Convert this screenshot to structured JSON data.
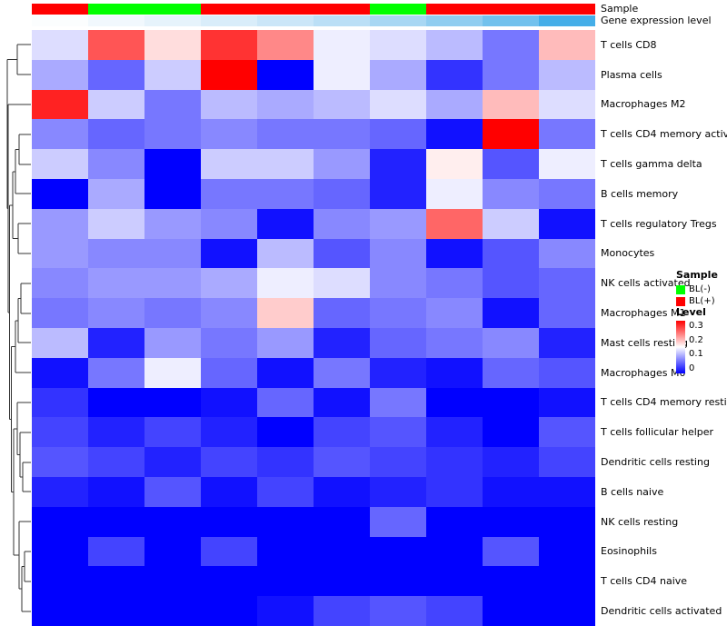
{
  "figure": {
    "annotation_labels": {
      "sample": "Sample",
      "expression": "Gene expression level"
    }
  },
  "chart_data": {
    "type": "heatmap",
    "title": "",
    "rows": [
      "T cells CD8",
      "Plasma cells",
      "Macrophages M2",
      "T cells CD4 memory activated",
      "T cells gamma delta",
      "B cells memory",
      "T cells regulatory Tregs",
      "Monocytes",
      "NK cells activated",
      "Macrophages M1",
      "Mast cells resting",
      "Macrophages M0",
      "T cells CD4 memory resting",
      "T cells follicular helper",
      "Dendritic cells resting",
      "B cells naive",
      "NK cells resting",
      "Eosinophils",
      "T cells CD4 naive",
      "Dendritic cells activated"
    ],
    "n_columns": 10,
    "column_annotations": {
      "sample_values": [
        "BL(+)",
        "BL(-)",
        "BL(-)",
        "BL(+)",
        "BL(+)",
        "BL(+)",
        "BL(-)",
        "BL(+)",
        "BL(+)",
        "BL(+)"
      ],
      "sample_colors": {
        "BL(+)": "#FF0000",
        "BL(-)": "#00FF00"
      },
      "gene_expression_level_colors": [
        "#fbfdfe",
        "#f1f8fd",
        "#e6f3fb",
        "#d9edfa",
        "#cbe6f8",
        "#bbdff6",
        "#a8d7f3",
        "#90cdf0",
        "#72c1ed",
        "#45aee8"
      ]
    },
    "values": [
      [
        0.13,
        0.25,
        0.17,
        0.27,
        0.22,
        0.14,
        0.13,
        0.11,
        0.07,
        0.19
      ],
      [
        0.1,
        0.06,
        0.12,
        0.3,
        0.0,
        0.14,
        0.1,
        0.03,
        0.07,
        0.11
      ],
      [
        0.28,
        0.12,
        0.07,
        0.11,
        0.1,
        0.11,
        0.13,
        0.1,
        0.19,
        0.13
      ],
      [
        0.08,
        0.06,
        0.07,
        0.08,
        0.07,
        0.07,
        0.06,
        0.01,
        0.3,
        0.07
      ],
      [
        0.12,
        0.08,
        0.0,
        0.12,
        0.12,
        0.09,
        0.02,
        0.16,
        0.05,
        0.14
      ],
      [
        0.0,
        0.1,
        0.0,
        0.07,
        0.07,
        0.06,
        0.02,
        0.14,
        0.08,
        0.07
      ],
      [
        0.09,
        0.12,
        0.09,
        0.08,
        0.01,
        0.08,
        0.09,
        0.24,
        0.12,
        0.01
      ],
      [
        0.09,
        0.08,
        0.08,
        0.01,
        0.11,
        0.05,
        0.08,
        0.01,
        0.05,
        0.08
      ],
      [
        0.08,
        0.09,
        0.09,
        0.1,
        0.14,
        0.13,
        0.08,
        0.07,
        0.05,
        0.06
      ],
      [
        0.07,
        0.08,
        0.07,
        0.08,
        0.18,
        0.06,
        0.07,
        0.08,
        0.01,
        0.06
      ],
      [
        0.11,
        0.02,
        0.09,
        0.07,
        0.09,
        0.02,
        0.06,
        0.07,
        0.08,
        0.02
      ],
      [
        0.01,
        0.07,
        0.14,
        0.06,
        0.01,
        0.07,
        0.02,
        0.01,
        0.06,
        0.05
      ],
      [
        0.03,
        0.0,
        0.0,
        0.01,
        0.06,
        0.01,
        0.07,
        0.0,
        0.0,
        0.01
      ],
      [
        0.04,
        0.02,
        0.04,
        0.02,
        0.0,
        0.04,
        0.05,
        0.02,
        0.0,
        0.05
      ],
      [
        0.05,
        0.04,
        0.02,
        0.04,
        0.03,
        0.05,
        0.04,
        0.03,
        0.02,
        0.04
      ],
      [
        0.02,
        0.01,
        0.05,
        0.01,
        0.04,
        0.01,
        0.02,
        0.03,
        0.01,
        0.01
      ],
      [
        0.0,
        0.0,
        0.0,
        0.0,
        0.0,
        0.0,
        0.06,
        0.0,
        0.0,
        0.0
      ],
      [
        0.0,
        0.04,
        0.0,
        0.04,
        0.0,
        0.0,
        0.0,
        0.0,
        0.05,
        0.0
      ],
      [
        0.0,
        0.0,
        0.0,
        0.0,
        0.0,
        0.0,
        0.0,
        0.0,
        0.0,
        0.0
      ],
      [
        0.0,
        0.0,
        0.0,
        0.0,
        0.01,
        0.04,
        0.05,
        0.04,
        0.0,
        0.0
      ]
    ],
    "color_scale": {
      "min": 0,
      "max": 0.3,
      "min_color": "#0000FF",
      "mid_color": "#FFFFFF",
      "max_color": "#FF0000",
      "legend_title": "Level",
      "legend_ticks": [
        "0.3",
        "0.2",
        "0.1",
        "0"
      ]
    },
    "legend_position": "right",
    "grid": false
  },
  "legends": {
    "sample": {
      "title": "Sample",
      "items": [
        {
          "label": "BL(-)",
          "color": "#00FF00"
        },
        {
          "label": "BL(+)",
          "color": "#FF0000"
        }
      ]
    },
    "level": {
      "title": "Level",
      "ticks": [
        "0.3",
        "0.2",
        "0.1",
        "0"
      ]
    }
  },
  "dendrogram": {
    "color": "#333333",
    "segments": [
      [
        34,
        49,
        19,
        49
      ],
      [
        34,
        82,
        19,
        82
      ],
      [
        19,
        49,
        19,
        82
      ],
      [
        19,
        65.5,
        8,
        65.5
      ],
      [
        34,
        148,
        21,
        148
      ],
      [
        34,
        181,
        21,
        181
      ],
      [
        21,
        148,
        21,
        181
      ],
      [
        21,
        164.5,
        17,
        164.5
      ],
      [
        34,
        213,
        17,
        213
      ],
      [
        17,
        164.5,
        17,
        213
      ],
      [
        17,
        189,
        14,
        189
      ],
      [
        34,
        246,
        20,
        246
      ],
      [
        34,
        279,
        20,
        279
      ],
      [
        20,
        246,
        20,
        279
      ],
      [
        20,
        262.5,
        14,
        262.5
      ],
      [
        14,
        189,
        14,
        262.5
      ],
      [
        14,
        226,
        10.5,
        226
      ],
      [
        34,
        312,
        23,
        312
      ],
      [
        34,
        345,
        23,
        345
      ],
      [
        23,
        312,
        23,
        345
      ],
      [
        23,
        328.5,
        20,
        328.5
      ],
      [
        34,
        377,
        20,
        377
      ],
      [
        20,
        328.5,
        20,
        377
      ],
      [
        20,
        353,
        17,
        353
      ],
      [
        34,
        410,
        17,
        410
      ],
      [
        17,
        353,
        17,
        410
      ],
      [
        17,
        381.5,
        12.5,
        381.5
      ],
      [
        34,
        509,
        25,
        509
      ],
      [
        34,
        541,
        25,
        541
      ],
      [
        25,
        509,
        25,
        541
      ],
      [
        25,
        525,
        22,
        525
      ],
      [
        34,
        476,
        22,
        476
      ],
      [
        22,
        476,
        22,
        525
      ],
      [
        22,
        500.5,
        19,
        500.5
      ],
      [
        34,
        443,
        19,
        443
      ],
      [
        19,
        443,
        19,
        500.5
      ],
      [
        19,
        472,
        15,
        472
      ],
      [
        34,
        607,
        27,
        607
      ],
      [
        34,
        640,
        27,
        640
      ],
      [
        27,
        607,
        27,
        640
      ],
      [
        27,
        623.5,
        24,
        623.5
      ],
      [
        34,
        673,
        24,
        673
      ],
      [
        24,
        623.5,
        24,
        673
      ],
      [
        24,
        648,
        21,
        648
      ],
      [
        34,
        574,
        21,
        574
      ],
      [
        21,
        574,
        21,
        648
      ],
      [
        21,
        611,
        15,
        611
      ],
      [
        15,
        472,
        15,
        611
      ],
      [
        15,
        541.5,
        12.5,
        541.5
      ],
      [
        12.5,
        381.5,
        12.5,
        541.5
      ],
      [
        12.5,
        461.5,
        10.5,
        461.5
      ],
      [
        10.5,
        226,
        10.5,
        461.5
      ],
      [
        10.5,
        344,
        9,
        344
      ],
      [
        34,
        115,
        9,
        115
      ],
      [
        9,
        115,
        9,
        344
      ],
      [
        9,
        229.5,
        8,
        229.5
      ],
      [
        8,
        65.5,
        8,
        229.5
      ]
    ]
  }
}
